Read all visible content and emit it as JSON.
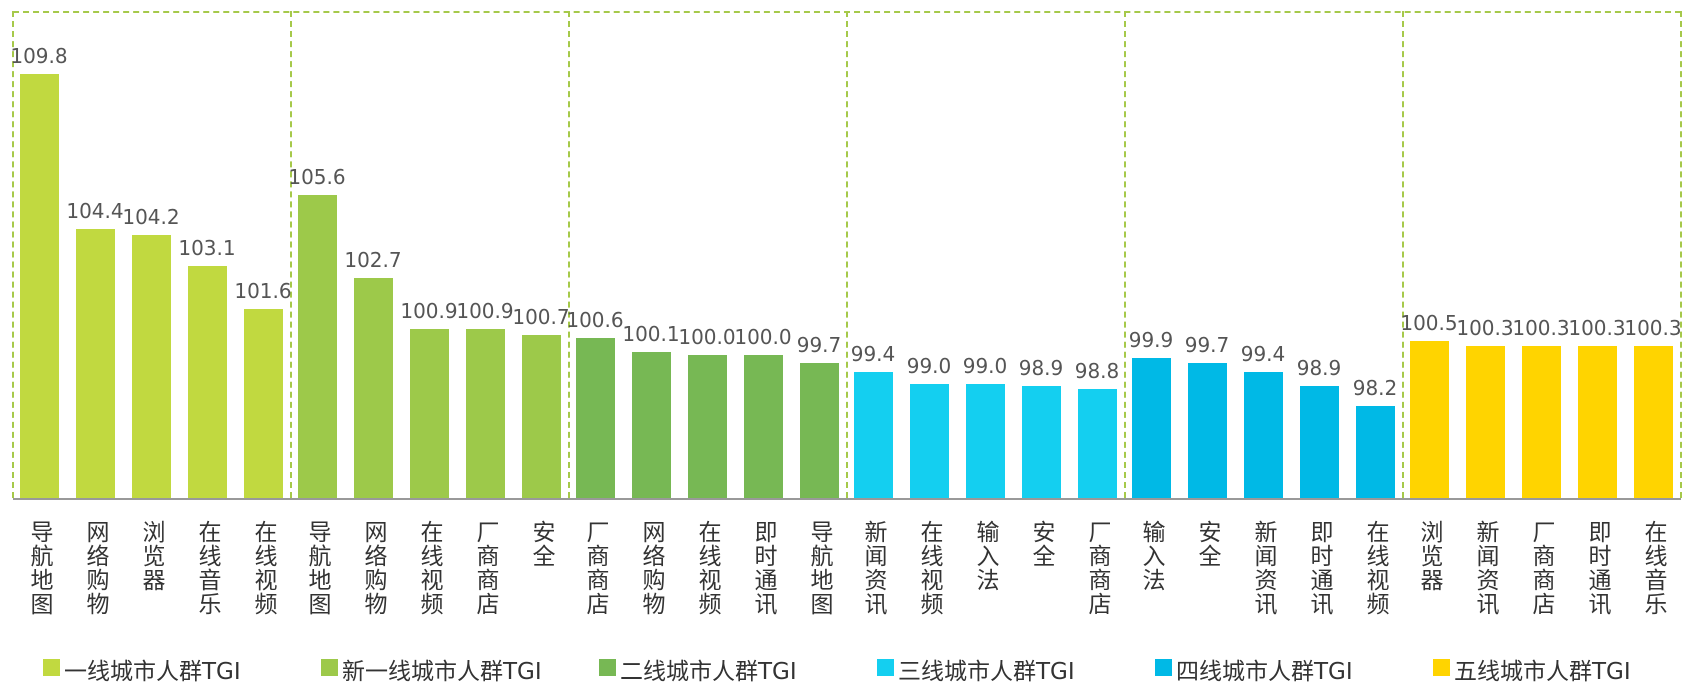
{
  "chart_data": [
    {
      "type": "bar",
      "name": "一线城市人群TGI",
      "color": "#c1d940",
      "ylim": [
        95,
        111
      ],
      "categories": [
        "导航地图",
        "网络购物",
        "浏览器",
        "在线音乐",
        "在线视频"
      ],
      "values": [
        109.8,
        104.4,
        104.2,
        103.1,
        101.6
      ],
      "value_labels": [
        "109.8",
        "104.4",
        "104.2",
        "103.1",
        "101.6"
      ]
    },
    {
      "type": "bar",
      "name": "新一线城市人群TGI",
      "color": "#9dc94a",
      "ylim": [
        95,
        111
      ],
      "categories": [
        "导航地图",
        "网络购物",
        "在线视频",
        "厂商商店",
        "安全"
      ],
      "values": [
        105.6,
        102.7,
        100.9,
        100.9,
        100.7
      ],
      "value_labels": [
        "105.6",
        "102.7",
        "100.9",
        "100.9",
        "100.7"
      ]
    },
    {
      "type": "bar",
      "name": "二线城市人群TGI",
      "color": "#77b854",
      "ylim": [
        95,
        111
      ],
      "categories": [
        "厂商商店",
        "网络购物",
        "在线视频",
        "即时通讯",
        "导航地图"
      ],
      "values": [
        100.6,
        100.1,
        100.0,
        100.0,
        99.7
      ],
      "value_labels": [
        "100.6",
        "100.1",
        "100.0",
        "100.0",
        "99.7"
      ]
    },
    {
      "type": "bar",
      "name": "三线城市人群TGI",
      "color": "#14cff0",
      "ylim": [
        95,
        111
      ],
      "categories": [
        "新闻资讯",
        "在线视频",
        "输入法",
        "安全",
        "厂商商店"
      ],
      "values": [
        99.4,
        99.0,
        99.0,
        98.9,
        98.8
      ],
      "value_labels": [
        "99.4",
        "99.0",
        "99.0",
        "98.9",
        "98.8"
      ]
    },
    {
      "type": "bar",
      "name": "四线城市人群TGI",
      "color": "#00b9e6",
      "ylim": [
        95,
        111
      ],
      "categories": [
        "输入法",
        "安全",
        "新闻资讯",
        "即时通讯",
        "在线视频"
      ],
      "values": [
        99.9,
        99.7,
        99.4,
        98.9,
        98.2
      ],
      "value_labels": [
        "99.9",
        "99.7",
        "99.4",
        "98.9",
        "98.2"
      ]
    },
    {
      "type": "bar",
      "name": "五线城市人群TGI",
      "color": "#ffd400",
      "ylim": [
        95,
        111
      ],
      "categories": [
        "浏览器",
        "新闻资讯",
        "厂商商店",
        "即时通讯",
        "在线音乐"
      ],
      "values": [
        100.5,
        100.3,
        100.3,
        100.3,
        100.3
      ],
      "value_labels": [
        "100.5",
        "100.3",
        "100.3",
        "100.3",
        "100.3"
      ]
    }
  ]
}
